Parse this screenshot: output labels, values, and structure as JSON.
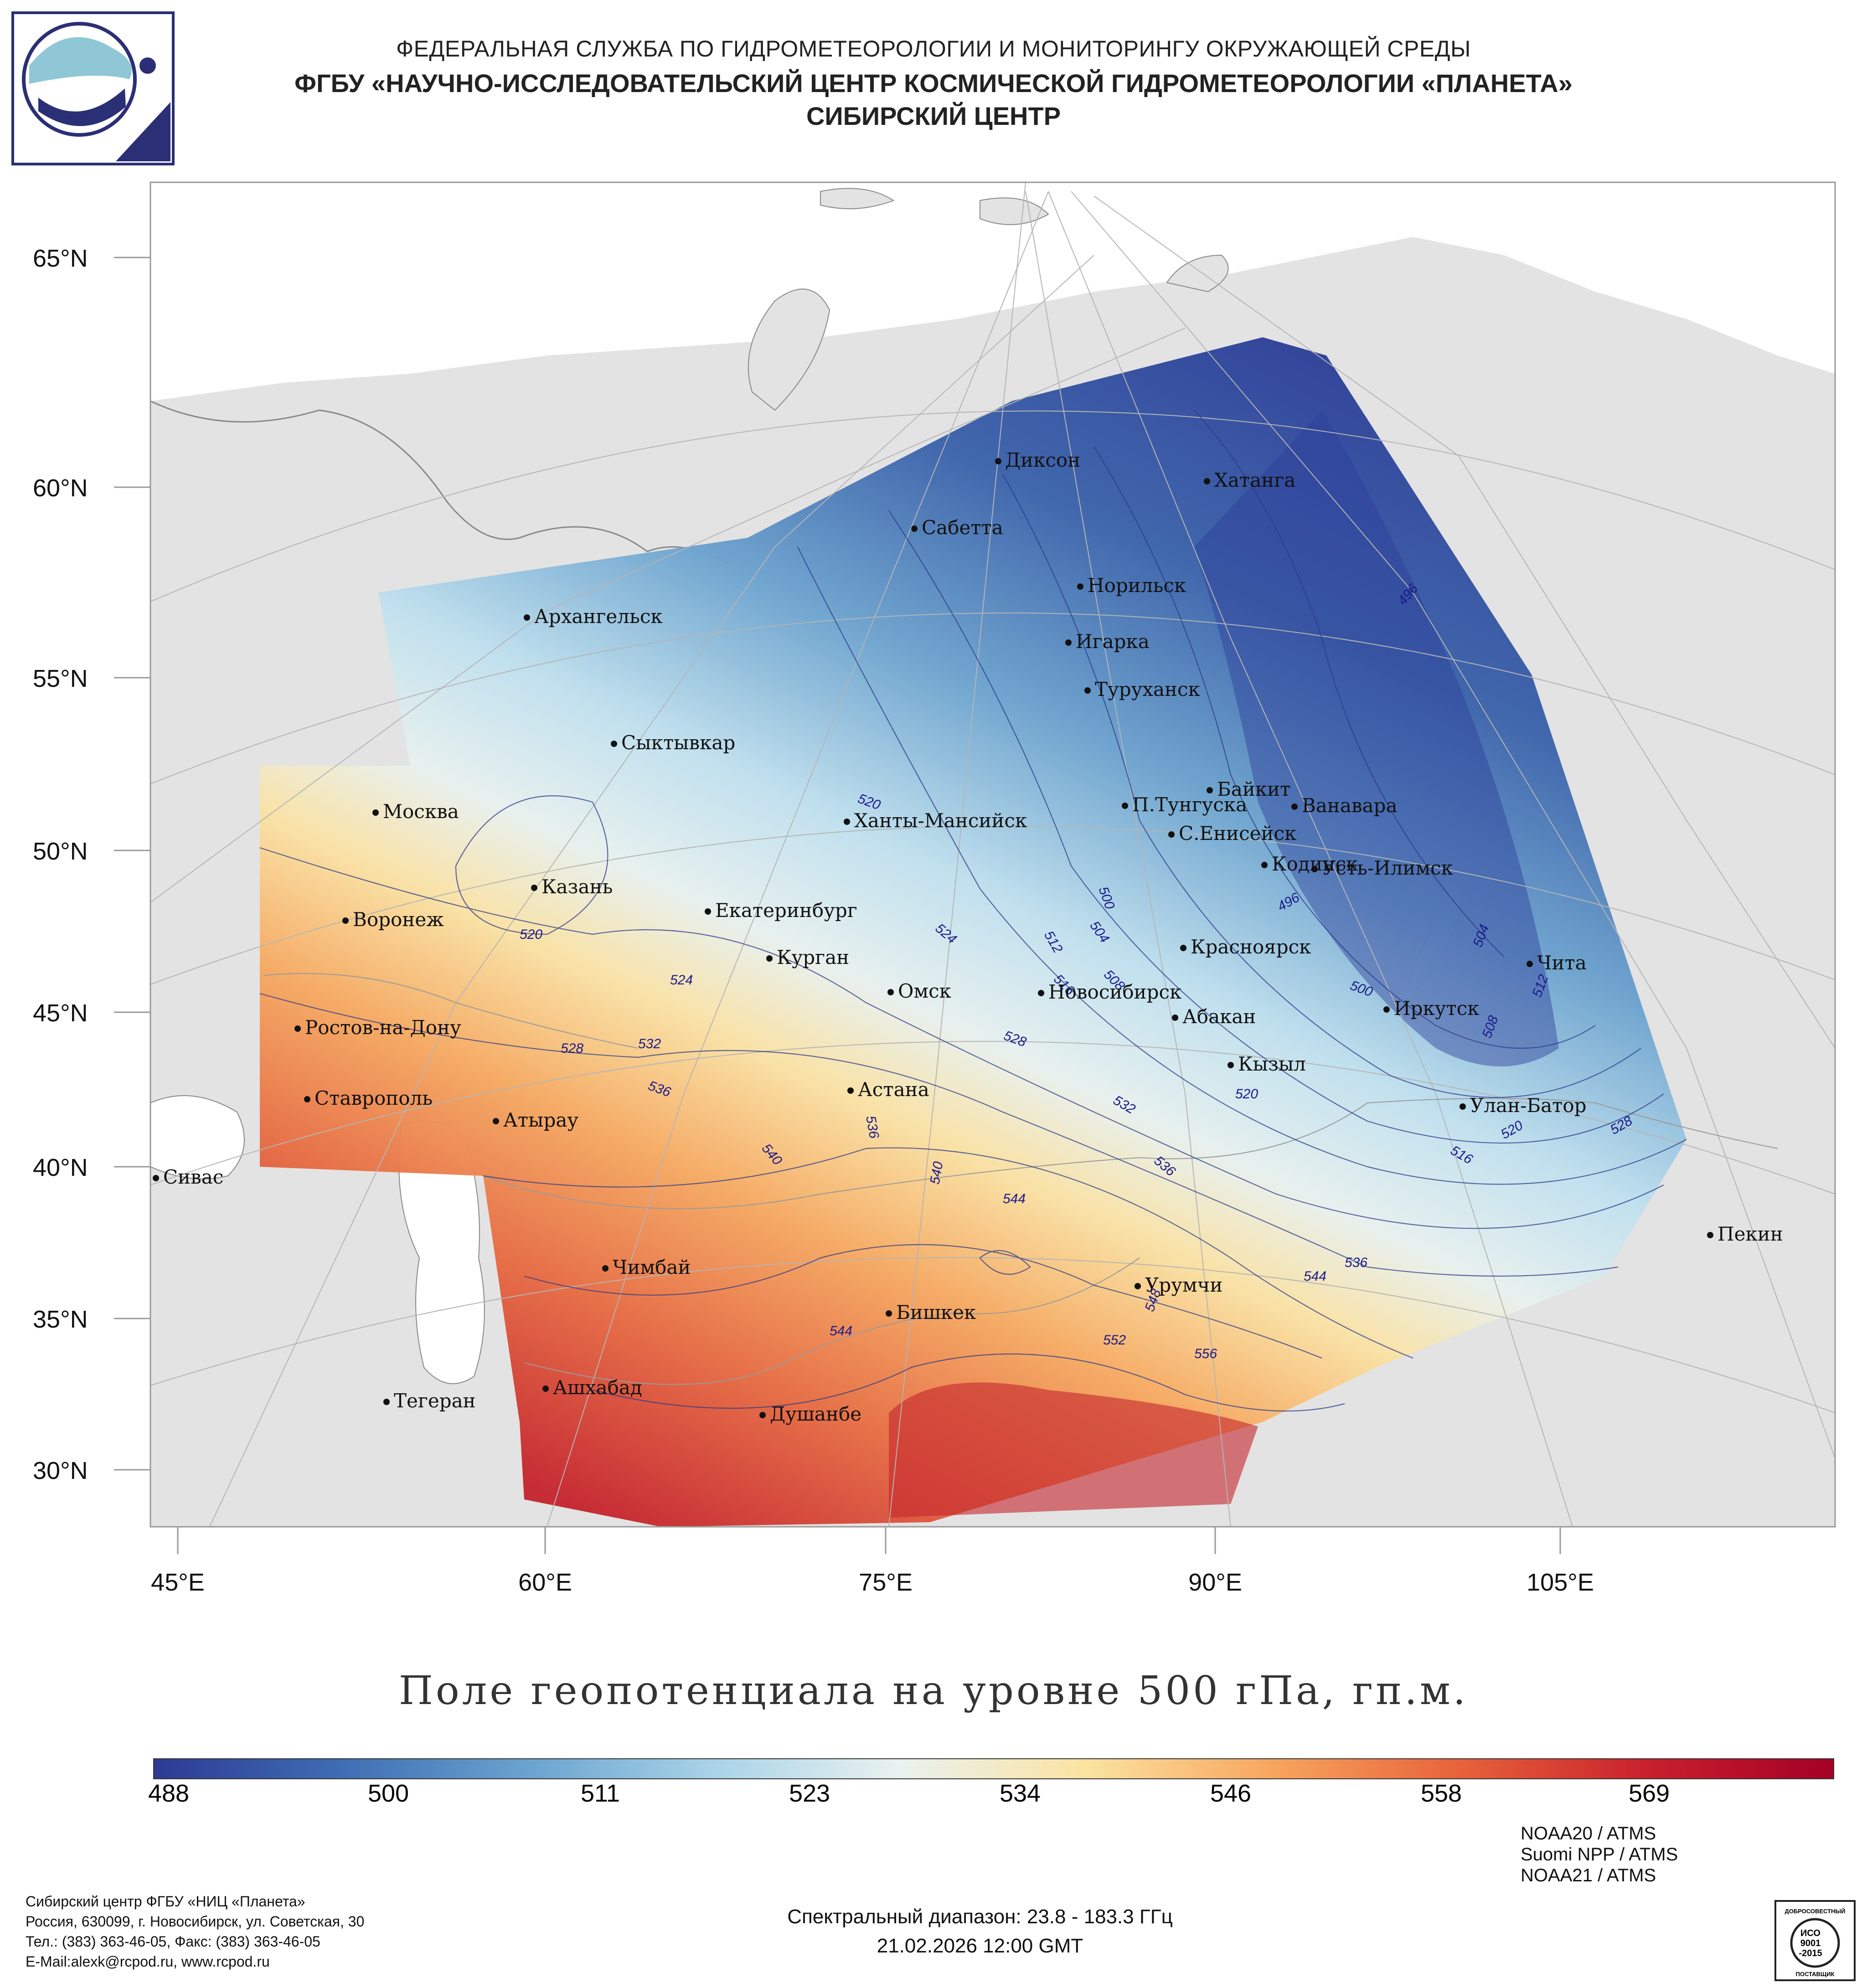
{
  "header": {
    "org_line1": "ФЕДЕРАЛЬНАЯ СЛУЖБА ПО ГИДРОМЕТЕОРОЛОГИИ И МОНИТОРИНГУ ОКРУЖАЮЩЕЙ СРЕДЫ",
    "org_line2": "ФГБУ «НАУЧНО-ИССЛЕДОВАТЕЛЬСКИЙ ЦЕНТР КОСМИЧЕСКОЙ ГИДРОМЕТЕОРОЛОГИИ «ПЛАНЕТА»",
    "org_line3": "СИБИРСКИЙ ЦЕНТР"
  },
  "map": {
    "title": "Поле геопотенциала на уровне 500 гПа, гп.м.",
    "lat_labels": [
      "65°N",
      "60°N",
      "55°N",
      "50°N",
      "45°N",
      "40°N",
      "35°N",
      "30°N"
    ],
    "lon_labels": [
      "45°E",
      "60°E",
      "75°E",
      "90°E",
      "105°E"
    ],
    "cities": [
      "Диксон",
      "Хатанга",
      "Сабетта",
      "Норильск",
      "Архангельск",
      "Игарка",
      "Туруханск",
      "Сыктывкар",
      "Байкит",
      "Москва",
      "П.Тунгуска",
      "Ванавара",
      "Ханты-Мансийск",
      "С.Енисейск",
      "Кодинск",
      "Усть-Илимск",
      "Казань",
      "Екатеринбург",
      "Воронеж",
      "Красноярск",
      "Курган",
      "Чита",
      "Омск",
      "Новосибирск",
      "Иркутск",
      "Ростов-на-Дону",
      "Абакан",
      "Кызыл",
      "Ставрополь",
      "Астана",
      "Улан-Батор",
      "Атырау",
      "Сивас",
      "Пекин",
      "Чимбай",
      "Урумчи",
      "Бишкек",
      "Ашхабад",
      "Тегеран",
      "Душанбе"
    ],
    "contour_labels": [
      "496",
      "496",
      "500",
      "500",
      "504",
      "504",
      "508",
      "508",
      "512",
      "512",
      "516",
      "516",
      "520",
      "520",
      "520",
      "520",
      "524",
      "524",
      "528",
      "528",
      "528",
      "532",
      "532",
      "536",
      "536",
      "536",
      "536",
      "540",
      "540",
      "544",
      "544",
      "544",
      "548",
      "552",
      "556"
    ]
  },
  "colorbar": {
    "ticks": [
      "488",
      "500",
      "511",
      "523",
      "534",
      "546",
      "558",
      "569"
    ],
    "min": 488,
    "max": 580,
    "colors": [
      "#2c3a94",
      "#3f6db3",
      "#6aa3cf",
      "#a9d3e8",
      "#e9f2ef",
      "#fbe3a0",
      "#f7a55e",
      "#e7623a",
      "#c8202c",
      "#a50026"
    ]
  },
  "footer": {
    "addr1": "Сибирский центр ФГБУ «НИЦ «Планета»",
    "addr2": "Россия, 630099, г. Новосибирск, ул. Советская, 30",
    "addr3": "Тел.: (383) 363-46-05, Факс: (383) 363-46-05",
    "addr4": "E-Mail:alexk@rcpod.ru, www.rcpod.ru",
    "spectral": "Спектральный диапазон: 23.8 - 183.3 ГГц",
    "datetime": "21.02.2026 12:00 GMT",
    "sources": [
      "NOAA20 / ATMS",
      "Suomi NPP / ATMS",
      "NOAA21 / ATMS"
    ]
  },
  "badge": {
    "line1": "ДОБРОСОВЕСТНЫЙ",
    "line2": "ИСО",
    "line3": "9001",
    "line4": "-2015",
    "line5": "ПОСТАВЩИК"
  }
}
